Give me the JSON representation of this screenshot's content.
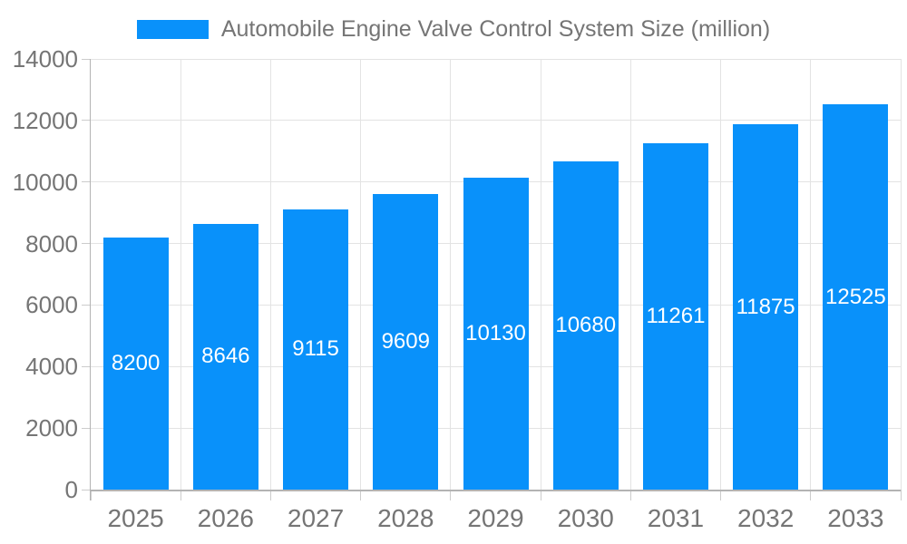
{
  "legend": {
    "label": "Automobile Engine Valve Control System Size (million)"
  },
  "colors": {
    "bar": "#0991fa",
    "text": "#757575",
    "grid": "#e3e3e3",
    "tick": "#cccccc",
    "axis": "#b3b3b3",
    "value_label": "#ffffff",
    "background": "#ffffff"
  },
  "chart_data": {
    "type": "bar",
    "title": "",
    "series_name": "Automobile Engine Valve Control System Size (million)",
    "categories": [
      "2025",
      "2026",
      "2027",
      "2028",
      "2029",
      "2030",
      "2031",
      "2032",
      "2033"
    ],
    "values": [
      8200,
      8646,
      9115,
      9609,
      10130,
      10680,
      11261,
      11875,
      12525
    ],
    "xlabel": "",
    "ylabel": "",
    "ylim": [
      0,
      14000
    ],
    "ytick_step": 2000,
    "yticks": [
      0,
      2000,
      4000,
      6000,
      8000,
      10000,
      12000,
      14000
    ],
    "grid": true,
    "legend_position": "top",
    "value_labels": "inside-center"
  }
}
